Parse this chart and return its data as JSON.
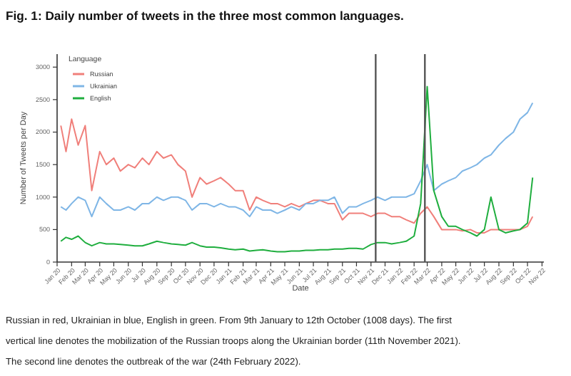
{
  "chart_data": {
    "type": "line",
    "title": "Fig. 1: Daily number of tweets in the three most common languages.",
    "xlabel": "Date",
    "ylabel": "Number of Tweets per Day",
    "legend_title": "Language",
    "legend": "top left",
    "grid": false,
    "line_style": "solid",
    "marker": "none",
    "x": [
      "2020-01-09",
      "2020-01-20",
      "2020-02-01",
      "2020-02-15",
      "2020-03-01",
      "2020-03-15",
      "2020-04-01",
      "2020-04-15",
      "2020-05-01",
      "2020-05-15",
      "2020-06-01",
      "2020-06-15",
      "2020-07-01",
      "2020-07-15",
      "2020-08-01",
      "2020-08-15",
      "2020-09-01",
      "2020-09-15",
      "2020-10-01",
      "2020-10-15",
      "2020-11-01",
      "2020-11-15",
      "2020-12-01",
      "2020-12-15",
      "2021-01-01",
      "2021-01-15",
      "2021-02-01",
      "2021-02-15",
      "2021-03-01",
      "2021-03-15",
      "2021-04-01",
      "2021-04-15",
      "2021-05-01",
      "2021-05-15",
      "2021-06-01",
      "2021-06-15",
      "2021-07-01",
      "2021-07-15",
      "2021-08-01",
      "2021-08-15",
      "2021-09-01",
      "2021-09-15",
      "2021-10-01",
      "2021-10-15",
      "2021-11-01",
      "2021-11-15",
      "2021-12-01",
      "2021-12-15",
      "2022-01-01",
      "2022-01-15",
      "2022-02-01",
      "2022-02-15",
      "2022-03-01",
      "2022-03-15",
      "2022-04-01",
      "2022-04-15",
      "2022-05-01",
      "2022-05-15",
      "2022-06-01",
      "2022-06-15",
      "2022-07-01",
      "2022-07-15",
      "2022-08-01",
      "2022-08-15",
      "2022-09-01",
      "2022-09-15",
      "2022-10-01",
      "2022-10-12"
    ],
    "series": [
      {
        "name": "Russian",
        "color": "#f07f7a",
        "values": [
          2100,
          1700,
          2200,
          1800,
          2100,
          1100,
          1700,
          1500,
          1600,
          1400,
          1500,
          1450,
          1600,
          1500,
          1700,
          1600,
          1650,
          1500,
          1400,
          1000,
          1300,
          1200,
          1250,
          1300,
          1200,
          1100,
          1100,
          800,
          1000,
          950,
          900,
          900,
          850,
          900,
          850,
          900,
          950,
          950,
          900,
          900,
          650,
          750,
          750,
          750,
          700,
          750,
          750,
          700,
          700,
          650,
          600,
          750,
          850,
          700,
          500,
          500,
          500,
          480,
          500,
          450,
          450,
          500,
          500,
          500,
          500,
          500,
          550,
          700
        ]
      },
      {
        "name": "Ukrainian",
        "color": "#7fb6e6",
        "values": [
          850,
          800,
          900,
          1000,
          950,
          700,
          1000,
          900,
          800,
          800,
          850,
          800,
          900,
          900,
          1000,
          950,
          1000,
          1000,
          950,
          800,
          900,
          900,
          850,
          900,
          850,
          850,
          800,
          700,
          850,
          800,
          800,
          750,
          800,
          850,
          800,
          900,
          900,
          950,
          950,
          1000,
          750,
          850,
          850,
          900,
          950,
          1000,
          950,
          1000,
          1000,
          1000,
          1050,
          1250,
          1500,
          1100,
          1200,
          1250,
          1300,
          1400,
          1450,
          1500,
          1600,
          1650,
          1800,
          1900,
          2000,
          2200,
          2300,
          2450
        ]
      },
      {
        "name": "English",
        "color": "#1fae3e",
        "values": [
          320,
          380,
          350,
          400,
          300,
          250,
          300,
          280,
          280,
          270,
          260,
          250,
          250,
          280,
          320,
          300,
          280,
          270,
          260,
          300,
          250,
          230,
          230,
          220,
          200,
          190,
          200,
          170,
          180,
          190,
          170,
          160,
          160,
          170,
          170,
          180,
          180,
          190,
          190,
          200,
          200,
          210,
          210,
          200,
          270,
          300,
          300,
          280,
          300,
          320,
          400,
          900,
          2700,
          1100,
          700,
          550,
          550,
          500,
          450,
          400,
          500,
          1000,
          500,
          450,
          480,
          500,
          600,
          1300
        ]
      }
    ],
    "xlim": [
      "2020-01-01",
      "2022-11-05"
    ],
    "xticks": [
      {
        "value": "2020-01",
        "label": "Jan 20"
      },
      {
        "value": "2020-02",
        "label": "Feb 20"
      },
      {
        "value": "2020-03",
        "label": "Mar 20"
      },
      {
        "value": "2020-04",
        "label": "Apr 20"
      },
      {
        "value": "2020-05",
        "label": "May 20"
      },
      {
        "value": "2020-06",
        "label": "Jun 20"
      },
      {
        "value": "2020-07",
        "label": "Jul 20"
      },
      {
        "value": "2020-08",
        "label": "Aug 20"
      },
      {
        "value": "2020-09",
        "label": "Sep 20"
      },
      {
        "value": "2020-10",
        "label": "Oct 20"
      },
      {
        "value": "2020-11",
        "label": "Nov 20"
      },
      {
        "value": "2020-12",
        "label": "Dec 20"
      },
      {
        "value": "2021-01",
        "label": "Jan 21"
      },
      {
        "value": "2021-02",
        "label": "Feb 21"
      },
      {
        "value": "2021-03",
        "label": "Mar 21"
      },
      {
        "value": "2021-04",
        "label": "Apr 21"
      },
      {
        "value": "2021-05",
        "label": "May 21"
      },
      {
        "value": "2021-06",
        "label": "Jun 21"
      },
      {
        "value": "2021-07",
        "label": "Jul 21"
      },
      {
        "value": "2021-08",
        "label": "Aug 21"
      },
      {
        "value": "2021-09",
        "label": "Sep 21"
      },
      {
        "value": "2021-10",
        "label": "Oct 21"
      },
      {
        "value": "2021-11",
        "label": "Nov 21"
      },
      {
        "value": "2021-12",
        "label": "Dec 21"
      },
      {
        "value": "2022-01",
        "label": "Jan 22"
      },
      {
        "value": "2022-02",
        "label": "Feb 22"
      },
      {
        "value": "2022-03",
        "label": "Mar 22"
      },
      {
        "value": "2022-04",
        "label": "Apr 22"
      },
      {
        "value": "2022-05",
        "label": "May 22"
      },
      {
        "value": "2022-06",
        "label": "Jun 22"
      },
      {
        "value": "2022-07",
        "label": "Jul 22"
      },
      {
        "value": "2022-08",
        "label": "Aug 22"
      },
      {
        "value": "2022-09",
        "label": "Sep 22"
      },
      {
        "value": "2022-10",
        "label": "Oct 22"
      },
      {
        "value": "2022-11",
        "label": "Nov 22"
      }
    ],
    "ylim": [
      0,
      3200
    ],
    "yticks": [
      0,
      500,
      1000,
      1500,
      2000,
      2500,
      3000
    ],
    "ref_lines": [
      {
        "axis": "x",
        "value": "2021-11-11",
        "color": "#555555"
      },
      {
        "axis": "x",
        "value": "2022-02-24",
        "color": "#555555"
      }
    ],
    "annotations": [
      "Russian in red, Ukrainian in blue, English in green. From 9th January to 12th October (1008 days). The first vertical line denotes the mobilization of the Russian troops along the Ukrainian border (11th November 2021). The second line denotes the outbreak of the war (24th February 2022)."
    ]
  }
}
